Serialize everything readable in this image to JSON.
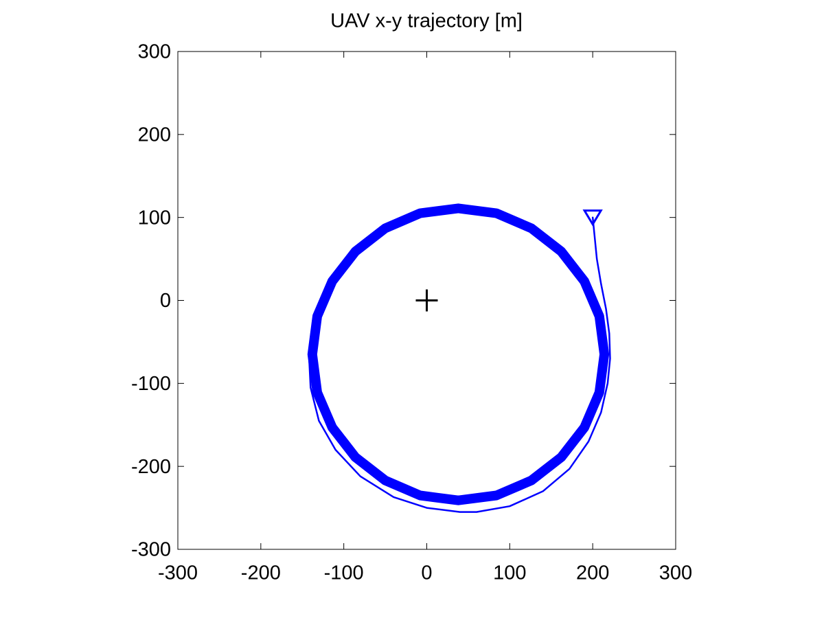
{
  "chart_data": {
    "type": "line",
    "title": "UAV x-y trajectory [m]",
    "xlim": [
      -300,
      300
    ],
    "ylim": [
      -300,
      300
    ],
    "xticks": [
      -300,
      -200,
      -100,
      0,
      100,
      200,
      300
    ],
    "yticks": [
      -300,
      -200,
      -100,
      0,
      100,
      200,
      300
    ],
    "grid": false,
    "series": [
      {
        "color": "#0000ff",
        "line_width": 2.5,
        "x": [
          200,
          202,
          205,
          210,
          216,
          220,
          221,
          218,
          210,
          195,
          172,
          140,
          100,
          60,
          40,
          0,
          -40,
          -80,
          -110,
          -130,
          -140,
          -142,
          -138
        ],
        "values": [
          100,
          80,
          50,
          20,
          -10,
          -40,
          -70,
          -100,
          -135,
          -170,
          -203,
          -230,
          -248,
          -255,
          -255,
          -250,
          -237,
          -212,
          -180,
          -145,
          -105,
          -65,
          -30
        ]
      },
      {
        "color": "#0000ff",
        "line_width": 14,
        "x": [
          -138,
          -132,
          -114,
          -86,
          -50,
          -8,
          38,
          84,
          126,
          162,
          190,
          208,
          214,
          208,
          190,
          162,
          126,
          84,
          38,
          -8,
          -50,
          -86,
          -114,
          -132,
          -138
        ],
        "values": [
          -65,
          -19,
          23,
          59,
          87,
          105,
          111,
          105,
          87,
          59,
          23,
          -19,
          -65,
          -111,
          -153,
          -189,
          -217,
          -235,
          -241,
          -235,
          -217,
          -189,
          -153,
          -111,
          -65
        ]
      }
    ],
    "markers": [
      {
        "x": 200,
        "y": 100,
        "shape": "triangle-down",
        "color": "#0000ff"
      },
      {
        "x": 0,
        "y": 0,
        "shape": "plus",
        "color": "#000000"
      }
    ]
  }
}
